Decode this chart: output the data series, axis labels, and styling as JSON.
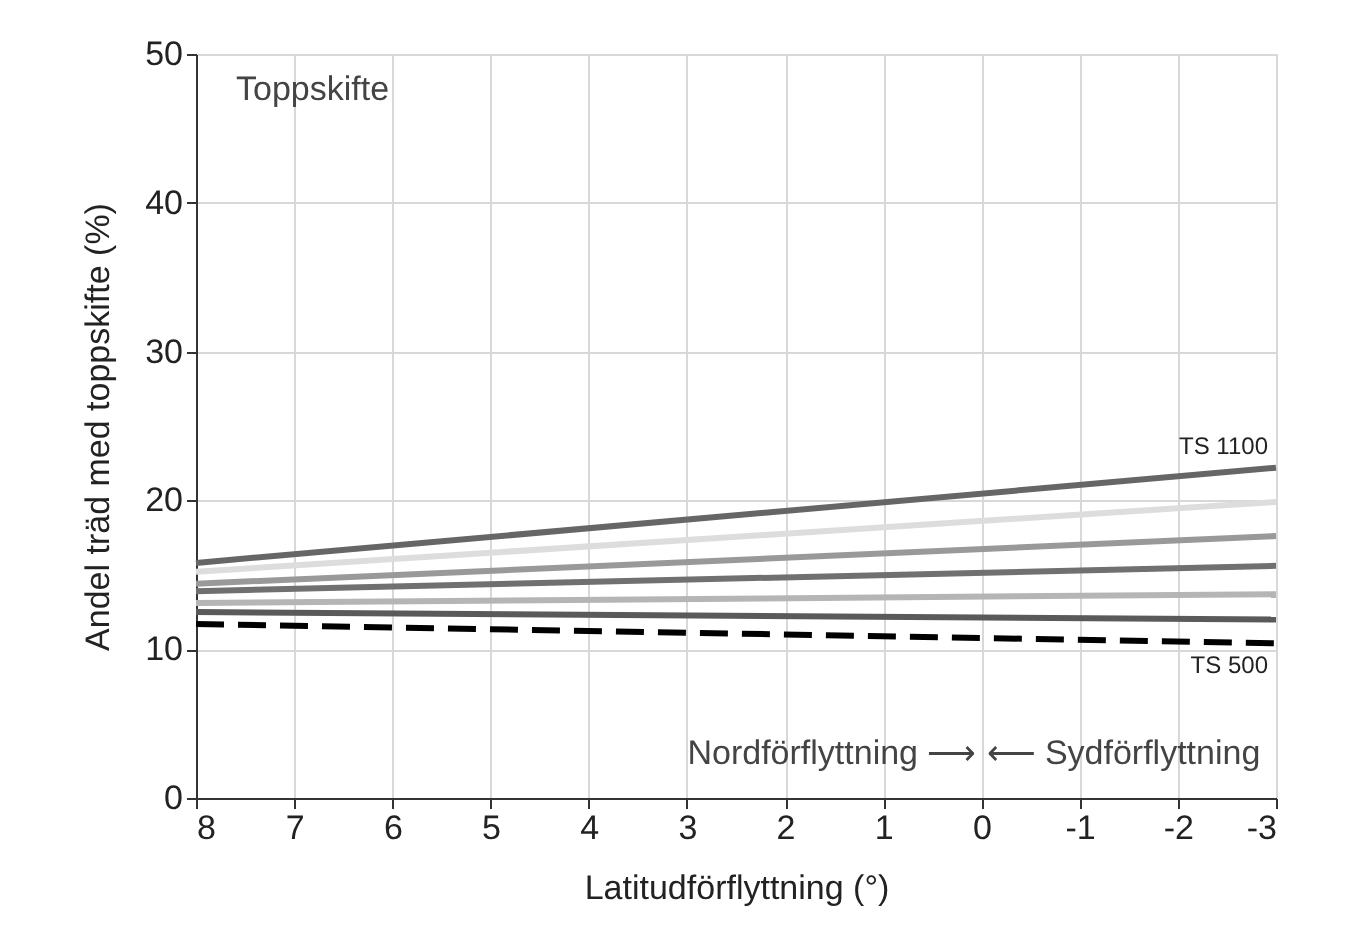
{
  "chart_data": {
    "type": "line",
    "xlabel": "Latitudförflyttning (°)",
    "ylabel": "Andel träd med toppskifte (%)",
    "x": [
      8,
      -3
    ],
    "xlim": [
      8,
      -3
    ],
    "xticks": [
      8,
      7,
      6,
      5,
      4,
      3,
      2,
      1,
      0,
      -1,
      -2,
      -3
    ],
    "ylim": [
      0,
      50
    ],
    "yticks": [
      0,
      10,
      20,
      30,
      40,
      50
    ],
    "grid": true,
    "marker": "none",
    "annotations": [
      "Toppskifte",
      "Nordförflyttning ⟶",
      "⟵ Sydförflyttning"
    ],
    "series": [
      {
        "name": "TS 1100",
        "color": "#666666",
        "values": [
          15.8,
          22.2
        ],
        "line_style": "solid"
      },
      {
        "color": "#dddddd",
        "values": [
          15.2,
          19.9
        ],
        "line_style": "solid"
      },
      {
        "color": "#999999",
        "values": [
          14.4,
          17.6
        ],
        "line_style": "solid"
      },
      {
        "color": "#707070",
        "values": [
          13.9,
          15.6
        ],
        "line_style": "solid"
      },
      {
        "color": "#b5b5b5",
        "values": [
          13.1,
          13.7
        ],
        "line_style": "solid"
      },
      {
        "color": "#5a5a5a",
        "values": [
          12.5,
          12.0
        ],
        "line_style": "solid"
      },
      {
        "name": "TS 500",
        "color": "#000000",
        "values": [
          11.7,
          10.4
        ],
        "line_style": "dashed"
      }
    ]
  }
}
